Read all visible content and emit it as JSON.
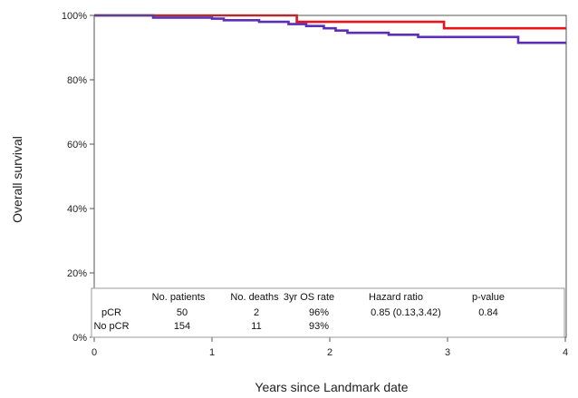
{
  "chart_data": {
    "type": "line",
    "title": "",
    "xlabel": "Years since Landmark date",
    "ylabel": "Overall survival",
    "xlim": [
      0,
      4
    ],
    "ylim": [
      0,
      100
    ],
    "x_ticks": [
      "0",
      "1",
      "2",
      "3",
      "4"
    ],
    "y_ticks": [
      "0%",
      "20%",
      "40%",
      "60%",
      "80%",
      "100%"
    ],
    "grid": false,
    "step": true,
    "series": [
      {
        "name": "pCR",
        "color": "#e8141c",
        "points": [
          [
            0,
            100
          ],
          [
            1.72,
            100
          ],
          [
            1.72,
            98
          ],
          [
            2.97,
            98
          ],
          [
            2.97,
            96
          ],
          [
            4.05,
            96
          ]
        ]
      },
      {
        "name": "No pCR",
        "color": "#5b2fb8",
        "points": [
          [
            0,
            100
          ],
          [
            0.5,
            100
          ],
          [
            0.5,
            99.3
          ],
          [
            1.0,
            99.3
          ],
          [
            1.0,
            99
          ],
          [
            1.1,
            99
          ],
          [
            1.1,
            98.5
          ],
          [
            1.4,
            98.5
          ],
          [
            1.4,
            98
          ],
          [
            1.65,
            98
          ],
          [
            1.65,
            97.3
          ],
          [
            1.8,
            97.3
          ],
          [
            1.8,
            96.7
          ],
          [
            1.95,
            96.7
          ],
          [
            1.95,
            96
          ],
          [
            2.05,
            96
          ],
          [
            2.05,
            95.3
          ],
          [
            2.15,
            95.3
          ],
          [
            2.15,
            94.6
          ],
          [
            2.5,
            94.6
          ],
          [
            2.5,
            94
          ],
          [
            2.75,
            94
          ],
          [
            2.75,
            93.3
          ],
          [
            3.6,
            93.3
          ],
          [
            3.6,
            91.5
          ],
          [
            4.05,
            91.5
          ]
        ]
      }
    ],
    "table": {
      "headers": [
        "No. patients",
        "No. deaths",
        "3yr OS rate",
        "Hazard ratio",
        "p-value"
      ],
      "rows": [
        {
          "label": "pCR",
          "cells": [
            "50",
            "2",
            "96%",
            "0.85 (0.13,3.42)",
            "0.84"
          ]
        },
        {
          "label": "No pCR",
          "cells": [
            "154",
            "11",
            "93%",
            "",
            ""
          ]
        }
      ]
    }
  }
}
